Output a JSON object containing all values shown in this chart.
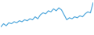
{
  "values": [
    8,
    11,
    9,
    12,
    11,
    13,
    12,
    14,
    13,
    15,
    14,
    16,
    15,
    18,
    16,
    20,
    22,
    21,
    24,
    23,
    26,
    24,
    27,
    25,
    20,
    15,
    17,
    16,
    18,
    17,
    19,
    18,
    21,
    23,
    22,
    32
  ],
  "line_color": "#55aadd",
  "background_color": "#ffffff",
  "linewidth": 0.9
}
